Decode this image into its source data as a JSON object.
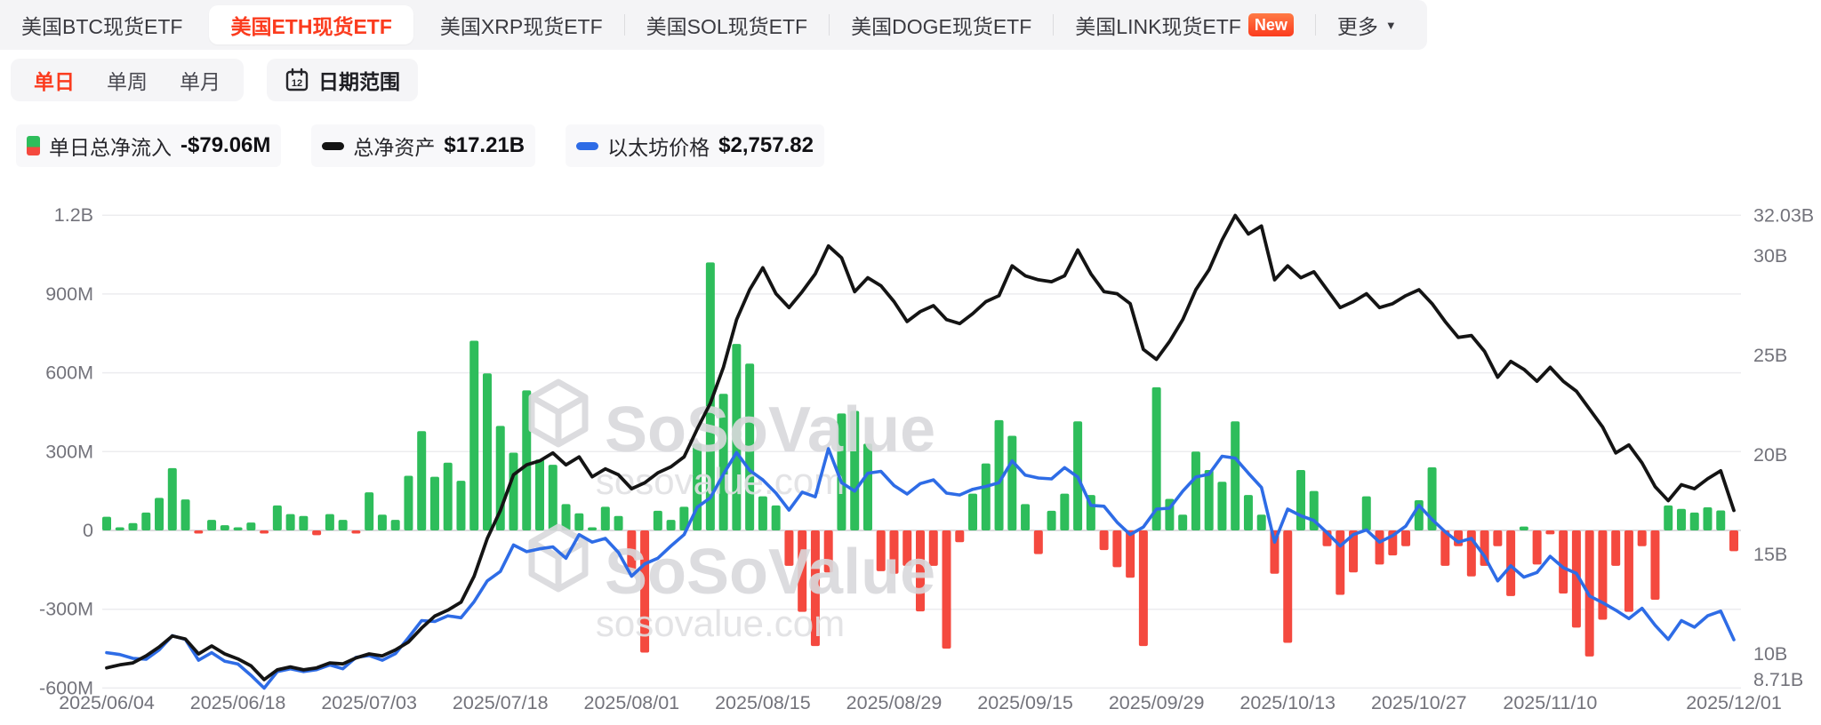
{
  "tabs": {
    "items": [
      {
        "label": "美国BTC现货ETF",
        "active": false
      },
      {
        "label": "美国ETH现货ETF",
        "active": true
      },
      {
        "label": "美国XRP现货ETF",
        "active": false
      },
      {
        "label": "美国SOL现货ETF",
        "active": false
      },
      {
        "label": "美国DOGE现货ETF",
        "active": false
      },
      {
        "label": "美国LINK现货ETF",
        "active": false,
        "badge": "New"
      },
      {
        "label": "更多",
        "active": false,
        "caret": true
      }
    ]
  },
  "toolbar": {
    "period_options": [
      {
        "label": "单日",
        "active": true
      },
      {
        "label": "单周",
        "active": false
      },
      {
        "label": "单月",
        "active": false
      }
    ],
    "date_range_label": "日期范围",
    "calendar_icon_day": "12"
  },
  "legend": {
    "items": [
      {
        "label": "单日总净流入",
        "value": "-$79.06M",
        "swatch": "split",
        "color_up": "#2ebd5b",
        "color_down": "#f4493f"
      },
      {
        "label": "总净资产",
        "value": "$17.21B",
        "swatch": "pill",
        "color": "#141414"
      },
      {
        "label": "以太坊价格",
        "value": "$2,757.82",
        "swatch": "pill",
        "color": "#2e6ce6"
      }
    ]
  },
  "watermark": {
    "title": "SoSoValue",
    "url": "sosovalue.com"
  },
  "chart_data": {
    "type": "combo",
    "series_info": [
      {
        "name": "单日总净流入",
        "type": "bar",
        "unit": "M USD",
        "axis": "left"
      },
      {
        "name": "总净资产",
        "type": "line",
        "unit": "B USD",
        "axis": "right",
        "color": "#141414"
      },
      {
        "name": "以太坊价格",
        "type": "line",
        "unit": "USD",
        "axis": "hidden",
        "color": "#2e6ce6"
      }
    ],
    "left_axis": {
      "ticks": [
        {
          "v": 1200,
          "label": "1.2B"
        },
        {
          "v": 900,
          "label": "900M"
        },
        {
          "v": 600,
          "label": "600M"
        },
        {
          "v": 300,
          "label": "300M"
        },
        {
          "v": 0,
          "label": "0"
        },
        {
          "v": -300,
          "label": "-300M"
        },
        {
          "v": -600,
          "label": "-600M"
        }
      ]
    },
    "right_axis": {
      "ticks": [
        {
          "v": 32.03,
          "label": "32.03B"
        },
        {
          "v": 30,
          "label": "30B"
        },
        {
          "v": 25,
          "label": "25B"
        },
        {
          "v": 20,
          "label": "20B"
        },
        {
          "v": 15,
          "label": "15B"
        },
        {
          "v": 10,
          "label": "10B"
        },
        {
          "v": 8.71,
          "label": "8.71B"
        }
      ]
    },
    "x_tick_labels": [
      "2025/06/04",
      "2025/06/18",
      "2025/07/03",
      "2025/07/18",
      "2025/08/01",
      "2025/08/15",
      "2025/08/29",
      "2025/09/15",
      "2025/09/29",
      "2025/10/13",
      "2025/10/27",
      "2025/11/10",
      "2025/12/01"
    ],
    "x_tick_indices": [
      0,
      10,
      20,
      30,
      40,
      50,
      60,
      70,
      80,
      90,
      100,
      110,
      124
    ],
    "daily_net_inflow_M": [
      52,
      8,
      28,
      68,
      124,
      237,
      118,
      -10,
      40,
      20,
      8,
      30,
      -8,
      95,
      62,
      55,
      -18,
      62,
      40,
      -5,
      145,
      60,
      40,
      208,
      378,
      204,
      258,
      189,
      722,
      598,
      398,
      296,
      533,
      270,
      250,
      100,
      65,
      10,
      90,
      55,
      -152,
      -465,
      75,
      40,
      90,
      330,
      1020,
      520,
      710,
      635,
      130,
      95,
      -135,
      -310,
      -440,
      -160,
      445,
      455,
      330,
      -155,
      -165,
      -135,
      -308,
      -135,
      -450,
      -45,
      140,
      255,
      420,
      360,
      100,
      -90,
      75,
      140,
      415,
      135,
      -75,
      -140,
      -180,
      -440,
      545,
      120,
      60,
      300,
      230,
      185,
      415,
      135,
      60,
      -165,
      -428,
      230,
      150,
      -60,
      -245,
      -160,
      130,
      -130,
      -95,
      -60,
      115,
      240,
      -135,
      -60,
      -175,
      -135,
      -60,
      -250,
      15,
      -130,
      -15,
      -240,
      -370,
      -480,
      -340,
      -135,
      -310,
      -60,
      -264,
      95,
      82,
      68,
      88,
      76,
      -79.06
    ],
    "total_net_assets_B": [
      9.3,
      9.45,
      9.55,
      9.9,
      10.35,
      10.9,
      10.75,
      10.0,
      10.4,
      10.0,
      9.75,
      9.4,
      8.71,
      9.2,
      9.35,
      9.2,
      9.3,
      9.55,
      9.5,
      9.8,
      10.0,
      9.9,
      10.2,
      10.6,
      11.3,
      11.9,
      12.2,
      12.6,
      13.9,
      15.8,
      17.2,
      19.0,
      19.5,
      19.7,
      20.1,
      19.5,
      19.9,
      18.9,
      19.3,
      19.0,
      18.3,
      18.6,
      19.1,
      19.4,
      19.9,
      21.3,
      22.6,
      24.4,
      26.8,
      28.3,
      29.4,
      28.1,
      27.4,
      28.2,
      29.1,
      30.5,
      29.9,
      28.2,
      28.9,
      28.5,
      27.7,
      26.7,
      27.2,
      27.5,
      26.8,
      26.6,
      27.1,
      27.7,
      28.0,
      29.5,
      29.0,
      28.8,
      28.7,
      29.0,
      30.3,
      29.1,
      28.2,
      28.1,
      27.6,
      25.3,
      24.8,
      25.7,
      26.8,
      28.3,
      29.3,
      30.8,
      32.03,
      31.1,
      31.5,
      28.8,
      29.5,
      28.9,
      29.2,
      28.3,
      27.4,
      27.7,
      28.1,
      27.4,
      27.6,
      28.0,
      28.3,
      27.6,
      26.7,
      25.9,
      26.0,
      25.2,
      23.9,
      24.7,
      24.3,
      23.7,
      24.4,
      23.7,
      23.2,
      22.3,
      21.4,
      20.1,
      20.5,
      19.6,
      18.4,
      17.7,
      18.5,
      18.3,
      18.8,
      19.2,
      17.21
    ],
    "eth_price_USD": [
      2620,
      2600,
      2560,
      2550,
      2650,
      2800,
      2760,
      2540,
      2620,
      2530,
      2500,
      2380,
      2245,
      2420,
      2450,
      2420,
      2440,
      2490,
      2450,
      2570,
      2590,
      2540,
      2610,
      2780,
      2960,
      2950,
      3010,
      2990,
      3160,
      3380,
      3480,
      3760,
      3690,
      3720,
      3740,
      3620,
      3870,
      3790,
      3830,
      3680,
      3430,
      3560,
      3620,
      3750,
      3870,
      4160,
      4260,
      4510,
      4740,
      4550,
      4450,
      4310,
      4130,
      4320,
      4270,
      4780,
      4420,
      4330,
      4520,
      4540,
      4390,
      4300,
      4410,
      4450,
      4310,
      4290,
      4350,
      4380,
      4420,
      4650,
      4500,
      4470,
      4460,
      4580,
      4480,
      4180,
      4170,
      4000,
      3870,
      3950,
      4140,
      4150,
      4330,
      4480,
      4510,
      4700,
      4680,
      4520,
      4370,
      3790,
      4140,
      4070,
      4020,
      3890,
      3750,
      3870,
      3920,
      3790,
      3860,
      3960,
      4180,
      4030,
      3900,
      3790,
      3830,
      3640,
      3380,
      3540,
      3420,
      3470,
      3640,
      3520,
      3460,
      3220,
      3150,
      3070,
      2980,
      3090,
      2910,
      2760,
      2960,
      2890,
      3010,
      3060,
      2757.82
    ],
    "colors": {
      "bar_up": "#2ebd5b",
      "bar_down": "#f4493f",
      "assets_line": "#141414",
      "price_line": "#2e6ce6",
      "grid": "#ececef",
      "zero_line": "#dcdcdf",
      "axis_text": "#73737b"
    }
  }
}
